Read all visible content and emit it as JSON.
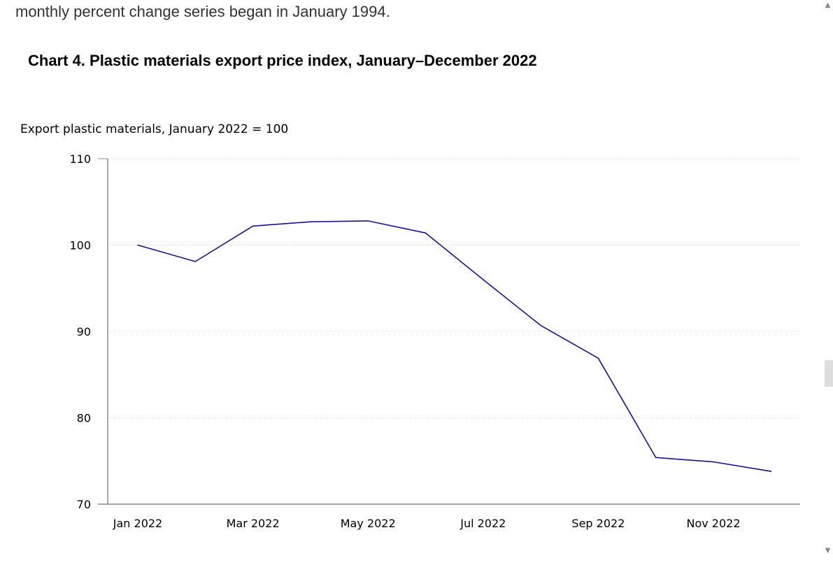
{
  "intro_text": "monthly percent change series began in January 1994.",
  "chart_title": "Chart 4. Plastic materials export price index, January–December 2022",
  "chart_data": {
    "type": "line",
    "title": "Chart 4. Plastic materials export price index, January–December 2022",
    "ylabel": "Export plastic materials, January 2022 = 100",
    "xlabel": "",
    "x": [
      "Jan 2022",
      "Feb 2022",
      "Mar 2022",
      "Apr 2022",
      "May 2022",
      "Jun 2022",
      "Jul 2022",
      "Aug 2022",
      "Sep 2022",
      "Oct 2022",
      "Nov 2022",
      "Dec 2022"
    ],
    "x_tick_labels": [
      "Jan 2022",
      "Mar 2022",
      "May 2022",
      "Jul 2022",
      "Sep 2022",
      "Nov 2022"
    ],
    "y_ticks": [
      70,
      80,
      90,
      100,
      110
    ],
    "ylim": [
      70,
      110
    ],
    "grid": "horizontal-dotted",
    "series": [
      {
        "values": [
          100.0,
          98.1,
          102.2,
          102.7,
          102.8,
          101.4,
          96.0,
          90.7,
          86.9,
          75.4,
          74.9,
          73.8
        ],
        "color": "#1a0fa8"
      }
    ]
  },
  "colors": {
    "line": "#1a0fa8",
    "axis": "#888888",
    "grid": "#c8c8c8",
    "scrollbar_thumb": "#dddddd"
  },
  "scrollbar": {
    "up_icon": "scroll-up-arrow-icon",
    "down_icon": "scroll-down-arrow-icon"
  }
}
